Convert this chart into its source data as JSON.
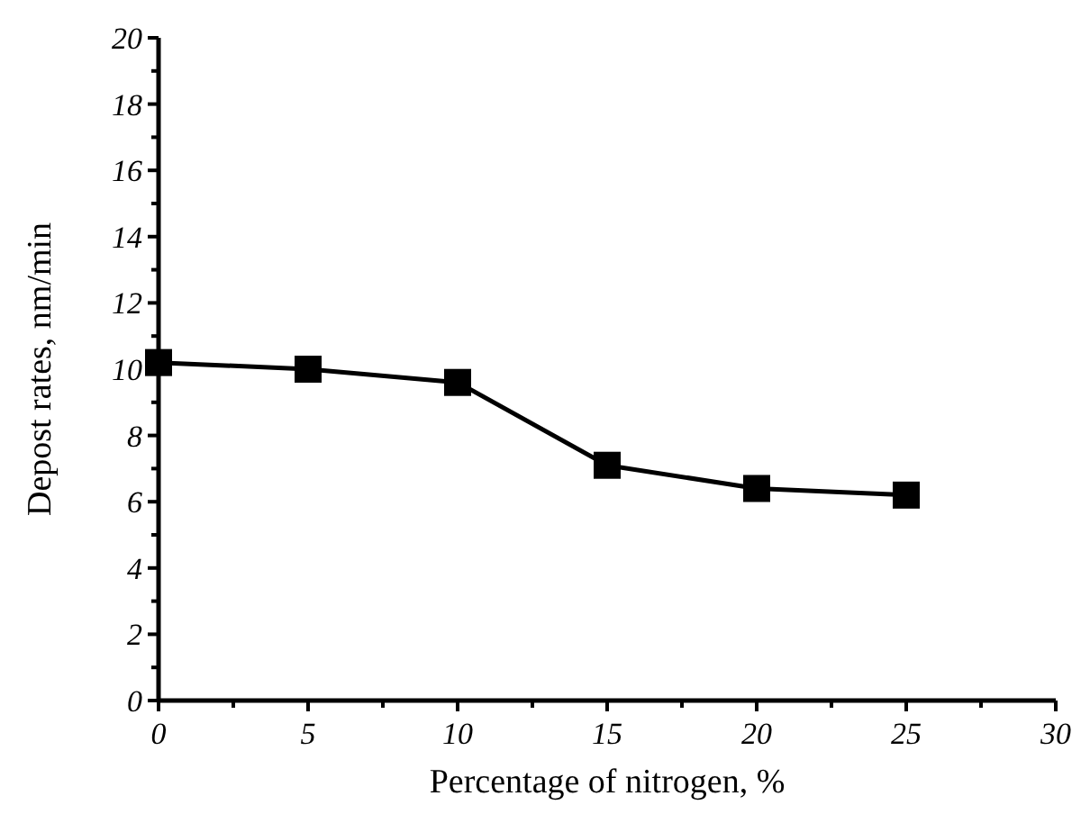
{
  "chart_data": {
    "type": "line",
    "xlabel": "Percentage of nitrogen, %",
    "ylabel": "Depost rates, nm/min",
    "x": [
      0,
      5,
      10,
      15,
      20,
      25
    ],
    "series": [
      {
        "color": "#000000",
        "values": [
          10.2,
          10.0,
          9.6,
          7.1,
          6.4,
          6.2
        ]
      }
    ],
    "xlim": [
      0,
      30
    ],
    "ylim": [
      0,
      20
    ],
    "xticks": [
      0,
      {
        "value": 2.5,
        "label": null
      },
      5,
      {
        "value": 7.5,
        "label": null
      },
      10,
      {
        "value": 12.5,
        "label": null
      },
      15,
      {
        "value": 17.5,
        "label": null
      },
      20,
      {
        "value": 22.5,
        "label": null
      },
      25,
      {
        "value": 27.5,
        "label": null
      },
      30
    ],
    "yticks": [
      0,
      {
        "value": 1,
        "label": null
      },
      2,
      {
        "value": 3,
        "label": null
      },
      4,
      {
        "value": 5,
        "label": null
      },
      6,
      {
        "value": 7,
        "label": null
      },
      8,
      {
        "value": 9,
        "label": null
      },
      10,
      {
        "value": 11,
        "label": null
      },
      12,
      {
        "value": 13,
        "label": null
      },
      14,
      {
        "value": 15,
        "label": null
      },
      16,
      {
        "value": 17,
        "label": null
      },
      18,
      {
        "value": 19,
        "label": null
      },
      20
    ],
    "marker": "square",
    "line_style": "solid",
    "grid": false
  }
}
